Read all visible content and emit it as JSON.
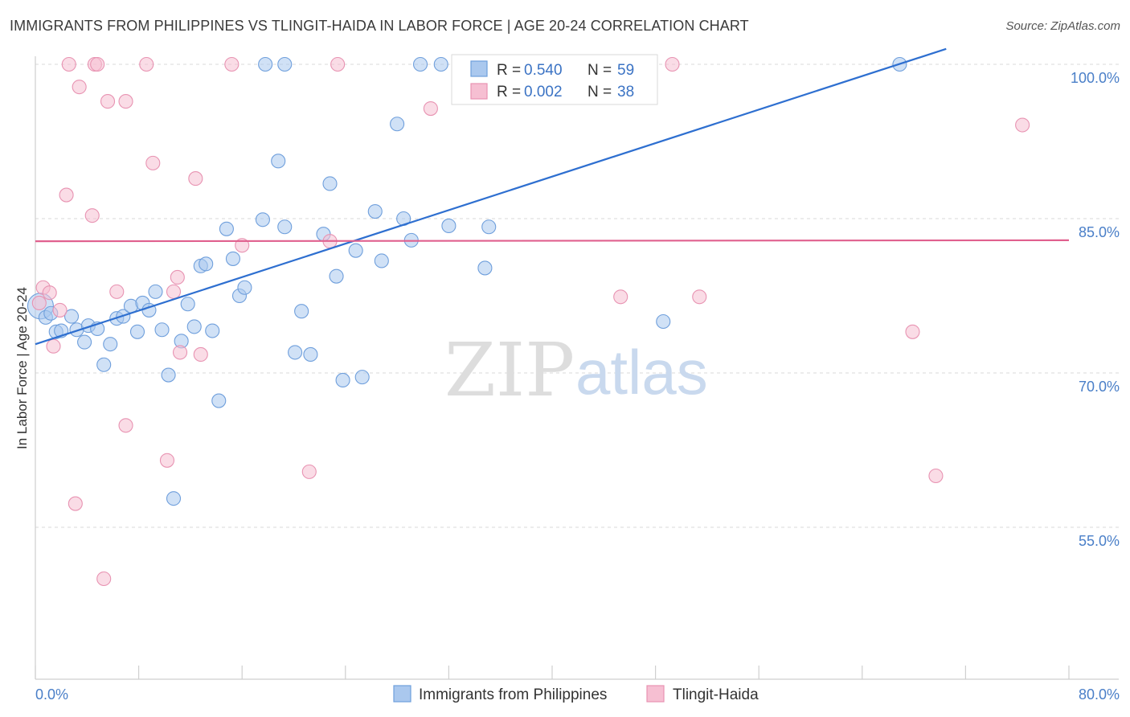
{
  "title": "IMMIGRANTS FROM PHILIPPINES VS TLINGIT-HAIDA IN LABOR FORCE | AGE 20-24 CORRELATION CHART",
  "source": "Source: ZipAtlas.com",
  "watermark": {
    "zip": "ZIP",
    "atlas": "atlas"
  },
  "colors": {
    "blue_fill": "#aac8ee",
    "blue_stroke": "#6f9fdc",
    "blue_line": "#2e6fd0",
    "pink_fill": "#f6bfd2",
    "pink_stroke": "#e893b2",
    "pink_line": "#e0608e",
    "grid": "#d8d8d8",
    "tick_text": "#4a7fc8"
  },
  "legend": {
    "rows": [
      {
        "r_label": "R = ",
        "r_value": "0.540",
        "n_label": "N = ",
        "n_value": "59"
      },
      {
        "r_label": "R = ",
        "r_value": "0.002",
        "n_label": "N = ",
        "n_value": "38"
      }
    ]
  },
  "chart_data": {
    "type": "scatter",
    "title": "IMMIGRANTS FROM PHILIPPINES VS TLINGIT-HAIDA IN LABOR FORCE | AGE 20-24 CORRELATION CHART",
    "xlabel": "",
    "ylabel": "In Labor Force | Age 20-24",
    "xlim": [
      0,
      80
    ],
    "ylim": [
      40,
      102
    ],
    "x_tick_labels": [
      {
        "value": 0,
        "label": "0.0%"
      },
      {
        "value": 80,
        "label": "80.0%"
      }
    ],
    "y_tick_labels": [
      {
        "value": 100,
        "label": "100.0%"
      },
      {
        "value": 85,
        "label": "85.0%"
      },
      {
        "value": 70,
        "label": "70.0%"
      },
      {
        "value": 55,
        "label": "55.0%"
      }
    ],
    "grid": true,
    "legend_position": "top-center",
    "series": [
      {
        "name": "Immigrants from Philippines",
        "trend": {
          "x": [
            0,
            70.5
          ],
          "y": [
            72.8,
            101.5
          ]
        },
        "points": [
          [
            0.4,
            76.5
          ],
          [
            0.8,
            75.4
          ],
          [
            1.2,
            75.8
          ],
          [
            1.6,
            74.0
          ],
          [
            2.0,
            74.1
          ],
          [
            2.8,
            75.5
          ],
          [
            3.2,
            74.2
          ],
          [
            3.8,
            73.0
          ],
          [
            4.1,
            74.6
          ],
          [
            4.8,
            74.3
          ],
          [
            5.3,
            70.8
          ],
          [
            5.8,
            72.8
          ],
          [
            6.3,
            75.3
          ],
          [
            6.8,
            75.5
          ],
          [
            7.4,
            76.5
          ],
          [
            7.9,
            74.0
          ],
          [
            8.3,
            76.8
          ],
          [
            8.8,
            76.1
          ],
          [
            9.3,
            77.9
          ],
          [
            9.8,
            74.2
          ],
          [
            10.3,
            69.8
          ],
          [
            10.7,
            57.8
          ],
          [
            11.3,
            73.1
          ],
          [
            11.8,
            76.7
          ],
          [
            12.3,
            74.5
          ],
          [
            12.8,
            80.4
          ],
          [
            13.2,
            80.6
          ],
          [
            13.7,
            74.1
          ],
          [
            14.2,
            67.3
          ],
          [
            14.8,
            84.0
          ],
          [
            15.3,
            81.1
          ],
          [
            15.8,
            77.5
          ],
          [
            16.2,
            78.3
          ],
          [
            17.6,
            84.9
          ],
          [
            18.8,
            90.6
          ],
          [
            19.3,
            84.2
          ],
          [
            20.1,
            72.0
          ],
          [
            20.6,
            76.0
          ],
          [
            21.3,
            71.8
          ],
          [
            22.3,
            83.5
          ],
          [
            22.8,
            88.4
          ],
          [
            23.3,
            79.4
          ],
          [
            23.8,
            69.3
          ],
          [
            24.8,
            81.9
          ],
          [
            25.3,
            69.6
          ],
          [
            26.3,
            85.7
          ],
          [
            26.8,
            80.9
          ],
          [
            28.0,
            94.2
          ],
          [
            28.5,
            85.0
          ],
          [
            29.1,
            82.9
          ],
          [
            32.0,
            84.3
          ],
          [
            35.1,
            84.2
          ],
          [
            34.8,
            80.2
          ],
          [
            48.6,
            75.0
          ],
          [
            17.8,
            100.0
          ],
          [
            19.3,
            100.0
          ],
          [
            29.8,
            100.0
          ],
          [
            31.4,
            100.0
          ],
          [
            66.9,
            100.0
          ]
        ]
      },
      {
        "name": "Tlingit-Haida",
        "trend": {
          "x": [
            0,
            80
          ],
          "y": [
            82.8,
            82.9
          ]
        },
        "points": [
          [
            0.3,
            76.8
          ],
          [
            0.6,
            78.3
          ],
          [
            1.1,
            77.8
          ],
          [
            1.4,
            72.6
          ],
          [
            1.9,
            76.1
          ],
          [
            2.4,
            87.3
          ],
          [
            3.1,
            57.3
          ],
          [
            3.4,
            97.8
          ],
          [
            4.4,
            85.3
          ],
          [
            5.3,
            50.0
          ],
          [
            5.6,
            96.4
          ],
          [
            6.3,
            77.9
          ],
          [
            7.0,
            96.4
          ],
          [
            7.0,
            64.9
          ],
          [
            9.1,
            90.4
          ],
          [
            10.2,
            61.5
          ],
          [
            10.7,
            77.9
          ],
          [
            11.0,
            79.3
          ],
          [
            11.2,
            72.0
          ],
          [
            12.4,
            88.9
          ],
          [
            12.8,
            71.8
          ],
          [
            16.0,
            82.4
          ],
          [
            21.2,
            60.4
          ],
          [
            22.8,
            82.8
          ],
          [
            30.6,
            95.7
          ],
          [
            45.3,
            77.4
          ],
          [
            51.4,
            77.4
          ],
          [
            67.9,
            74.0
          ],
          [
            69.7,
            60.0
          ],
          [
            76.4,
            94.1
          ],
          [
            2.6,
            100.0
          ],
          [
            4.6,
            100.0
          ],
          [
            4.8,
            100.0
          ],
          [
            8.6,
            100.0
          ],
          [
            15.2,
            100.0
          ],
          [
            23.4,
            100.0
          ],
          [
            34.3,
            100.0
          ],
          [
            49.3,
            100.0
          ]
        ]
      }
    ]
  }
}
